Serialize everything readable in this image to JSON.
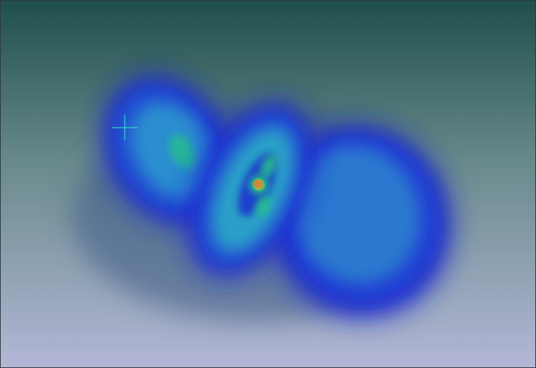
{
  "render": {
    "background_top": "#1f4f4c",
    "background_mid": "#6a8b8d",
    "background_bottom": "#b3b7d6",
    "lobe_outer": "#1f2bd0",
    "lobe_core": "#2f8fd0",
    "lobe_green": "#27c08e",
    "nucleus_color": "#e3a13a",
    "cursor_color": "#34d8c4"
  }
}
